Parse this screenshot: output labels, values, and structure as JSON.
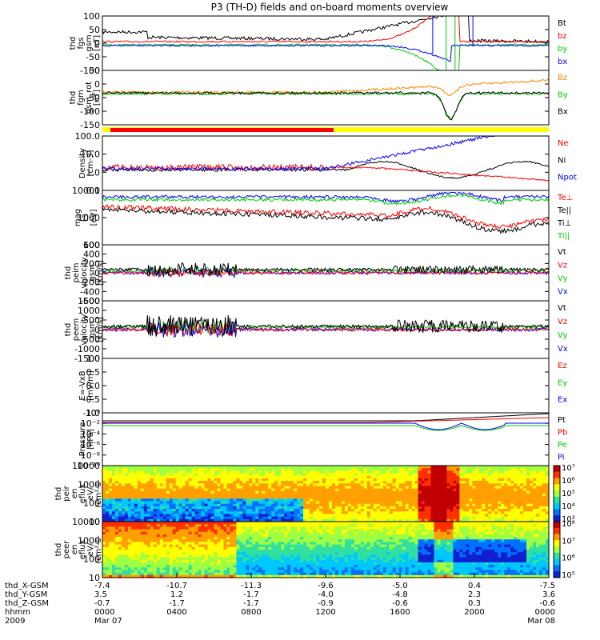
{
  "title": "P3 (TH-D) fields and on-board moments overview",
  "colors": {
    "black": "#000000",
    "red": "#ff0000",
    "green": "#00cc00",
    "blue": "#0000ff",
    "yellow": "#ffff00",
    "orange": "#ff8800",
    "cyan": "#00ffff"
  },
  "chart_data": {
    "type": "line",
    "time_axis": {
      "rows": [
        {
          "label": "thd_X-GSM",
          "values": [
            "-7.4",
            "-10.7",
            "-11.3",
            "-9.6",
            "-5.0",
            "0.4",
            "-7.5"
          ]
        },
        {
          "label": "thd_Y-GSM",
          "values": [
            "3.5",
            "1.2",
            "-1.7",
            "-4.0",
            "-4.8",
            "2.3",
            "3.6"
          ]
        },
        {
          "label": "thd_Z-GSM",
          "values": [
            "-0.7",
            "-1.7",
            "-1.7",
            "-0.9",
            "-0.6",
            "0.3",
            "-0.6"
          ]
        },
        {
          "label": "hhmm",
          "values": [
            "0000",
            "0400",
            "0800",
            "1200",
            "1600",
            "2000",
            "0000"
          ]
        },
        {
          "label": "2009",
          "values": [
            "Mar 07",
            "",
            "",
            "",
            "",
            "",
            "Mar 08"
          ]
        }
      ]
    },
    "panels": [
      {
        "id": "fgs",
        "ylabel": [
          "thd",
          "fgs",
          "gsm",
          "[nT]"
        ],
        "yticks": [
          "100",
          "50",
          "0",
          "-50",
          "-100"
        ],
        "legend": [
          {
            "name": "Bt",
            "color": "#000000"
          },
          {
            "name": "bz",
            "color": "#ff0000"
          },
          {
            "name": "by",
            "color": "#00cc00"
          },
          {
            "name": "bx",
            "color": "#0000ff"
          }
        ]
      },
      {
        "id": "fgm",
        "ylabel": [
          "thd",
          "fgm",
          "gsm_rot",
          "[nT]"
        ],
        "yticks": [
          "50",
          "0",
          "-50",
          "-100",
          "-150"
        ],
        "legend": [
          {
            "name": "Bz",
            "color": "#ff8800"
          },
          {
            "name": "By",
            "color": "#00cc00"
          },
          {
            "name": "Bx",
            "color": "#000000"
          }
        ]
      },
      {
        "id": "density",
        "ylabel": [
          "Density",
          "[cm-3]"
        ],
        "yticks": [
          "100.0",
          "10.0",
          "1.0",
          "0.1"
        ],
        "legend": [
          {
            "name": "Ne",
            "color": "#ff0000"
          },
          {
            "name": "Ni",
            "color": "#000000"
          },
          {
            "name": "Npot",
            "color": "#0000ff"
          }
        ]
      },
      {
        "id": "temp",
        "ylabel": [
          "mag",
          "t3",
          "[eV]"
        ],
        "yticks": [
          "10000",
          "1000",
          "100"
        ],
        "legend": [
          {
            "name": "Te⊥",
            "color": "#ff0000"
          },
          {
            "name": "Te||",
            "color": "#000000"
          },
          {
            "name": "Ti⊥",
            "color": "#000000"
          },
          {
            "name": "Ti||",
            "color": "#00cc00"
          }
        ]
      },
      {
        "id": "vi",
        "ylabel": [
          "thd",
          "peim",
          "velocity",
          "gsm",
          "[km/s]"
        ],
        "yticks": [
          "600",
          "400",
          "200",
          "0",
          "-200",
          "-400",
          "-600"
        ],
        "legend": [
          {
            "name": "Vt",
            "color": "#000000"
          },
          {
            "name": "Vz",
            "color": "#ff0000"
          },
          {
            "name": "Vy",
            "color": "#00cc00"
          },
          {
            "name": "Vx",
            "color": "#0000ff"
          }
        ]
      },
      {
        "id": "ve",
        "ylabel": [
          "thd",
          "peem",
          "velocity",
          "gsm",
          "[km/s]"
        ],
        "yticks": [
          "1500",
          "1000",
          "500",
          "0",
          "-500",
          "-1000",
          "-1500"
        ],
        "legend": [
          {
            "name": "Vt",
            "color": "#000000"
          },
          {
            "name": "Vz",
            "color": "#ff0000"
          },
          {
            "name": "Vy",
            "color": "#00cc00"
          },
          {
            "name": "Vx",
            "color": "#0000ff"
          }
        ]
      },
      {
        "id": "efield",
        "ylabel": [
          "E=-VxB",
          "[mV/m]"
        ],
        "yticks": [
          "1.0",
          "0.5",
          "0.0",
          "-0.5",
          "-1.0"
        ],
        "legend": [
          {
            "name": "Ez",
            "color": "#ff0000"
          },
          {
            "name": "Ey",
            "color": "#00cc00"
          },
          {
            "name": "Ex",
            "color": "#0000ff"
          }
        ]
      },
      {
        "id": "pressure",
        "ylabel": [
          "Pressure",
          "[nPa]"
        ],
        "yticks": [
          "10⁰",
          "10⁻²",
          "10⁻⁴",
          "10⁻⁶",
          "10⁻⁸",
          "10⁻¹⁰"
        ],
        "legend": [
          {
            "name": "Pt",
            "color": "#000000"
          },
          {
            "name": "Pb",
            "color": "#ff0000"
          },
          {
            "name": "Pe",
            "color": "#00cc00"
          },
          {
            "name": "Pi",
            "color": "#0000ff"
          }
        ]
      },
      {
        "id": "ions",
        "ylabel": [
          "thd",
          "peir",
          "en",
          "eflux",
          "eV/",
          "(cm²-s-",
          "sr-eV)"
        ],
        "yticks": [
          "10000",
          "1000",
          "100",
          "10"
        ],
        "colorbar": [
          "10⁷",
          "10⁶",
          "10⁵",
          "10⁴",
          "10³"
        ]
      },
      {
        "id": "electrons",
        "ylabel": [
          "thd",
          "peer",
          "en",
          "eflux",
          "eV/",
          "(cm²-s-",
          "sr-eV)"
        ],
        "yticks": [
          "10000",
          "1000",
          "100",
          "10"
        ],
        "colorbar": [
          "10⁸",
          "10⁷",
          "10⁶",
          "10⁵"
        ]
      }
    ]
  }
}
